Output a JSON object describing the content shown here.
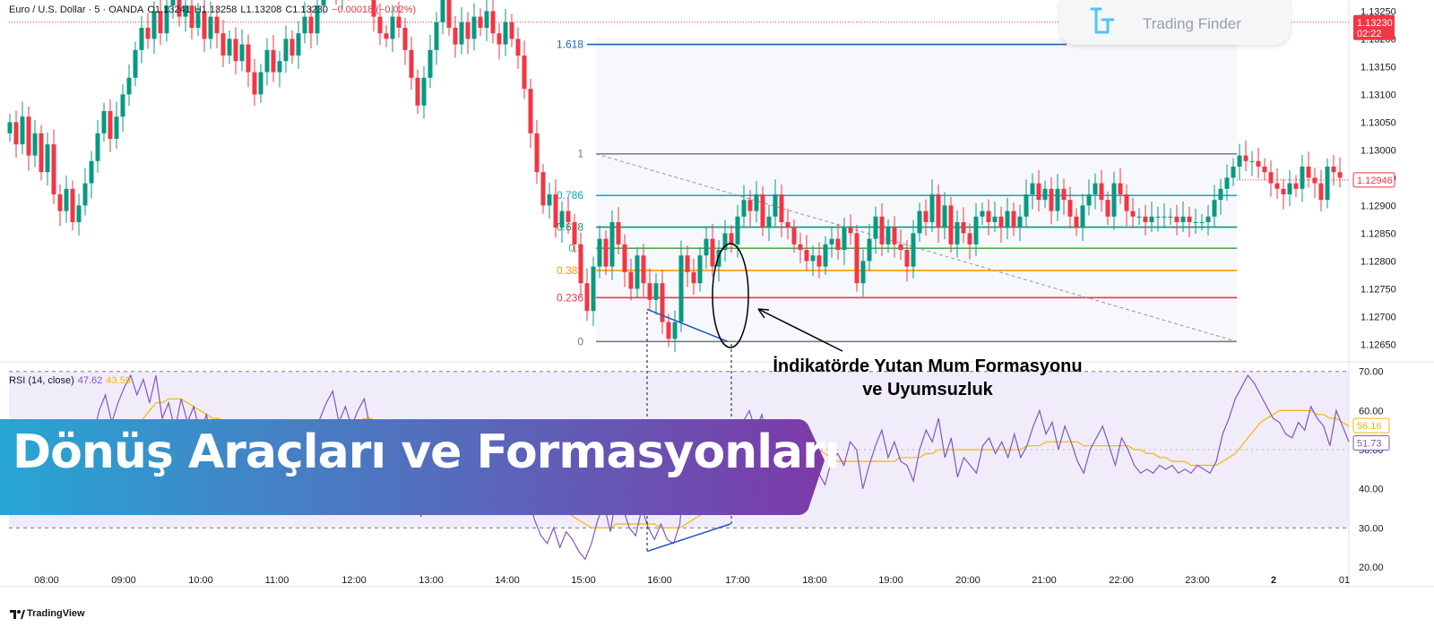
{
  "header": {
    "symbol": "Euro / U.S. Dollar · 5 · OANDA",
    "open": "O1.13241",
    "high": "H1.13258",
    "low": "L1.13208",
    "close": "C1.13230",
    "change": "−0.00018 (−0.02%)"
  },
  "logo": {
    "brand": "Trading Finder"
  },
  "footer": {
    "brand": "TradingView"
  },
  "price_tag": {
    "value": "1.13230",
    "countdown": "02:22"
  },
  "last_price_label": "1.12946",
  "rsi_header": {
    "label": "RSI (14, close)",
    "rsi_value": "47.62",
    "ma_value": "43.59"
  },
  "rsi_tags": {
    "ma": "56.16",
    "rsi": "51.73"
  },
  "annotation": {
    "line1": "İndikatörde Yutan Mum Formasyonu",
    "line2": "ve Uyumsuzluk"
  },
  "banner": {
    "title": "Dönüş Araçları ve Formasyonları",
    "color_start": "#27a6d4",
    "color_end": "#7c3aa8"
  },
  "colors": {
    "up": "#089981",
    "down": "#f23645",
    "rsi": "#7e57c2",
    "rsi_ma": "#f7b500",
    "divergence": "#1e55c5"
  },
  "chart_data": [
    {
      "type": "candlestick",
      "symbol": "EURUSD",
      "timeframe": "5",
      "x_ticks": [
        "08:00",
        "09:00",
        "10:00",
        "11:00",
        "12:00",
        "13:00",
        "14:00",
        "15:00",
        "16:00",
        "17:00",
        "18:00",
        "19:00",
        "20:00",
        "21:00",
        "22:00",
        "23:00",
        "2",
        "01"
      ],
      "y_ticks": [
        "1.13250",
        "1.13200",
        "1.13150",
        "1.13100",
        "1.13050",
        "1.13000",
        "1.12950",
        "1.12900",
        "1.12850",
        "1.12800",
        "1.12750",
        "1.12700",
        "1.12650"
      ],
      "ylim": [
        1.1262,
        1.1327
      ],
      "closes": [
        1.1305,
        1.1301,
        1.1306,
        1.1299,
        1.1303,
        1.1296,
        1.1301,
        1.1292,
        1.1289,
        1.1293,
        1.1287,
        1.129,
        1.1294,
        1.1298,
        1.1303,
        1.1307,
        1.1302,
        1.1306,
        1.131,
        1.1313,
        1.1318,
        1.1322,
        1.132,
        1.1325,
        1.1321,
        1.1326,
        1.1327,
        1.1324,
        1.1326,
        1.1322,
        1.1325,
        1.132,
        1.1324,
        1.1321,
        1.1317,
        1.132,
        1.1316,
        1.1319,
        1.1314,
        1.131,
        1.1314,
        1.1318,
        1.1314,
        1.1316,
        1.132,
        1.1317,
        1.1321,
        1.1324,
        1.1321,
        1.1326,
        1.133,
        1.1333,
        1.1328,
        1.1332,
        1.1329,
        1.1333,
        1.1336,
        1.133,
        1.1324,
        1.1321,
        1.132,
        1.1324,
        1.1322,
        1.1318,
        1.1313,
        1.1308,
        1.1313,
        1.1318,
        1.1323,
        1.1327,
        1.1322,
        1.1319,
        1.1323,
        1.132,
        1.1324,
        1.1322,
        1.1325,
        1.1321,
        1.1319,
        1.1323,
        1.132,
        1.1317,
        1.1311,
        1.1303,
        1.1296,
        1.129,
        1.1292,
        1.1286,
        1.1289,
        1.1287,
        1.1283,
        1.1276,
        1.1271,
        1.1279,
        1.1284,
        1.1279,
        1.1287,
        1.1283,
        1.1278,
        1.1275,
        1.1281,
        1.1276,
        1.1273,
        1.1276,
        1.1269,
        1.1266,
        1.1269,
        1.1281,
        1.1278,
        1.1276,
        1.1281,
        1.1284,
        1.1279,
        1.1282,
        1.1285,
        1.1283,
        1.1288,
        1.1291,
        1.1289,
        1.1292,
        1.1286,
        1.1288,
        1.1292,
        1.1287,
        1.1286,
        1.1283,
        1.1282,
        1.128,
        1.1281,
        1.1279,
        1.1283,
        1.1284,
        1.1282,
        1.1286,
        1.1285,
        1.1276,
        1.128,
        1.1284,
        1.1288,
        1.1283,
        1.1286,
        1.1283,
        1.1282,
        1.1279,
        1.1285,
        1.1289,
        1.1287,
        1.1292,
        1.1286,
        1.129,
        1.1283,
        1.1287,
        1.1285,
        1.1283,
        1.1288,
        1.1289,
        1.1287,
        1.1288,
        1.1286,
        1.1289,
        1.1286,
        1.1288,
        1.1292,
        1.1294,
        1.1291,
        1.1293,
        1.1289,
        1.1293,
        1.1291,
        1.1288,
        1.1286,
        1.129,
        1.1292,
        1.1294,
        1.1291,
        1.1288,
        1.1294,
        1.1292,
        1.1289,
        1.1288,
        1.1288,
        1.1287,
        1.1288,
        1.1288,
        1.1288,
        1.1288,
        1.1287,
        1.1288,
        1.1287,
        1.1287,
        1.1287,
        1.1288,
        1.1291,
        1.1293,
        1.1295,
        1.1297,
        1.1299,
        1.1298,
        1.1298,
        1.1297,
        1.1296,
        1.1294,
        1.1293,
        1.1292,
        1.1294,
        1.1293,
        1.1297,
        1.1295,
        1.1294,
        1.1291,
        1.1297,
        1.1296,
        1.1295
      ],
      "fibonacci": [
        {
          "level": "1.618",
          "price": 1.1319,
          "color": "#1565c0"
        },
        {
          "level": "1",
          "price": 1.12993,
          "color": "#787b86"
        },
        {
          "level": "0.786",
          "price": 1.12918,
          "color": "#00acc1"
        },
        {
          "level": "0.618",
          "price": 1.12861,
          "color": "#089981"
        },
        {
          "level": "0.5",
          "price": 1.12823,
          "color": "#4caf50"
        },
        {
          "level": "0.382",
          "price": 1.12783,
          "color": "#ff9800"
        },
        {
          "level": "0.236",
          "price": 1.12734,
          "color": "#e53950"
        },
        {
          "level": "0",
          "price": 1.12655,
          "color": "#787b86"
        }
      ],
      "price_tag": 1.1323,
      "last_price": 1.12946
    },
    {
      "type": "line",
      "title": "RSI (14, close)",
      "ylim": [
        20,
        72
      ],
      "y_ticks": [
        70,
        60,
        50,
        40,
        30,
        20
      ],
      "bands": [
        30,
        70
      ],
      "series": [
        {
          "name": "RSI",
          "values": [
            54,
            50,
            57,
            49,
            55,
            46,
            52,
            44,
            40,
            46,
            38,
            42,
            48,
            53,
            60,
            64,
            57,
            62,
            66,
            69,
            64,
            68,
            62,
            69,
            58,
            62,
            55,
            63,
            57,
            61,
            54,
            59,
            52,
            57,
            50,
            54,
            46,
            52,
            44,
            38,
            45,
            50,
            45,
            48,
            52,
            48,
            54,
            57,
            52,
            58,
            62,
            65,
            57,
            61,
            56,
            60,
            63,
            55,
            48,
            45,
            44,
            49,
            46,
            42,
            37,
            33,
            40,
            46,
            51,
            55,
            49,
            45,
            50,
            47,
            52,
            49,
            54,
            48,
            46,
            51,
            48,
            44,
            38,
            32,
            28,
            26,
            30,
            25,
            29,
            27,
            24,
            22,
            26,
            32,
            36,
            29,
            39,
            35,
            30,
            28,
            35,
            30,
            27,
            31,
            27,
            26,
            31,
            47,
            43,
            41,
            48,
            52,
            46,
            49,
            53,
            50,
            57,
            60,
            55,
            59,
            50,
            52,
            57,
            50,
            48,
            44,
            46,
            42,
            44,
            41,
            47,
            49,
            46,
            52,
            50,
            40,
            46,
            51,
            55,
            48,
            52,
            47,
            46,
            42,
            50,
            55,
            52,
            58,
            48,
            53,
            43,
            48,
            46,
            44,
            51,
            53,
            49,
            52,
            48,
            54,
            48,
            51,
            56,
            60,
            54,
            57,
            50,
            56,
            52,
            47,
            44,
            50,
            53,
            56,
            51,
            46,
            53,
            50,
            46,
            44,
            45,
            44,
            46,
            45,
            46,
            44,
            45,
            44,
            46,
            45,
            44,
            47,
            54,
            58,
            63,
            66,
            69,
            67,
            64,
            61,
            58,
            57,
            54,
            53,
            57,
            55,
            61,
            58,
            56,
            51,
            60,
            56,
            52
          ]
        },
        {
          "name": "RSI-based MA",
          "values": [
            54,
            53,
            53,
            52,
            52,
            51,
            51,
            50,
            49,
            48,
            47,
            47,
            46,
            46,
            47,
            48,
            49,
            50,
            52,
            54,
            56,
            58,
            60,
            62,
            62,
            63,
            63,
            63,
            62,
            61,
            60,
            59,
            58,
            58,
            57,
            57,
            56,
            55,
            54,
            52,
            51,
            50,
            49,
            49,
            49,
            49,
            49,
            49,
            50,
            51,
            52,
            53,
            54,
            55,
            56,
            57,
            58,
            58,
            57,
            57,
            56,
            55,
            54,
            53,
            51,
            49,
            48,
            47,
            46,
            46,
            46,
            46,
            46,
            47,
            47,
            47,
            48,
            48,
            48,
            49,
            49,
            48,
            47,
            45,
            43,
            41,
            39,
            37,
            35,
            33,
            32,
            31,
            30,
            30,
            30,
            30,
            31,
            31,
            31,
            31,
            31,
            31,
            31,
            30,
            30,
            30,
            30,
            31,
            32,
            33,
            34,
            36,
            38,
            40,
            42,
            44,
            46,
            48,
            50,
            51,
            52,
            53,
            53,
            53,
            53,
            53,
            52,
            51,
            50,
            49,
            48,
            47,
            47,
            47,
            47,
            47,
            47,
            47,
            47,
            47,
            47,
            48,
            48,
            48,
            48,
            49,
            49,
            50,
            50,
            50,
            50,
            50,
            50,
            50,
            50,
            50,
            50,
            50,
            50,
            50,
            50,
            51,
            51,
            51,
            52,
            52,
            52,
            52,
            52,
            52,
            51,
            51,
            51,
            51,
            51,
            51,
            51,
            51,
            50,
            50,
            49,
            49,
            48,
            48,
            47,
            47,
            47,
            46,
            46,
            46,
            46,
            46,
            47,
            48,
            49,
            51,
            53,
            55,
            57,
            58,
            59,
            60,
            60,
            60,
            60,
            60,
            60,
            59,
            59,
            58,
            58,
            57,
            56
          ]
        }
      ]
    }
  ]
}
